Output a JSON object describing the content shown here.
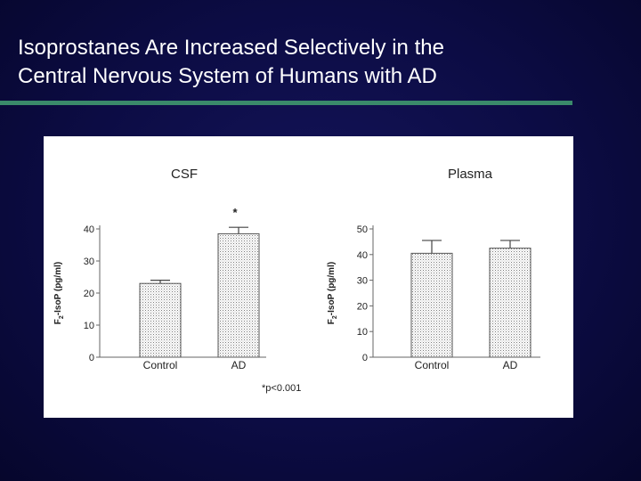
{
  "slide": {
    "title_line1": "Isoprostanes Are Increased Selectively in the",
    "title_line2": "Central Nervous System of Humans with AD"
  },
  "colors": {
    "background": "#0c0c44",
    "title_text": "#ffffff",
    "rule": "#3a8a6a",
    "panel": "#ffffff"
  },
  "chart_data": [
    {
      "type": "bar",
      "title": "CSF",
      "ylabel": "F2-IsoP (pg/ml)",
      "ylabel_main": "F",
      "ylabel_sub": "2",
      "ylabel_rest": "-IsoP (pg/ml)",
      "categories": [
        "Control",
        "AD"
      ],
      "values": [
        23,
        38.5
      ],
      "errors": [
        1,
        2
      ],
      "ylim": [
        0,
        40
      ],
      "yticks": [
        0,
        10,
        20,
        30,
        40
      ],
      "annotations": [
        {
          "category": "AD",
          "text": "*"
        }
      ],
      "footnote": "*p<0.001"
    },
    {
      "type": "bar",
      "title": "Plasma",
      "ylabel": "F2-IsoP (pg/ml)",
      "ylabel_main": "F",
      "ylabel_sub": "2",
      "ylabel_rest": "-IsoP (pg/ml)",
      "categories": [
        "Control",
        "AD"
      ],
      "values": [
        40.5,
        42.5
      ],
      "errors": [
        5,
        3
      ],
      "ylim": [
        0,
        50
      ],
      "yticks": [
        0,
        10,
        20,
        30,
        40,
        50
      ],
      "annotations": [],
      "footnote": ""
    }
  ]
}
